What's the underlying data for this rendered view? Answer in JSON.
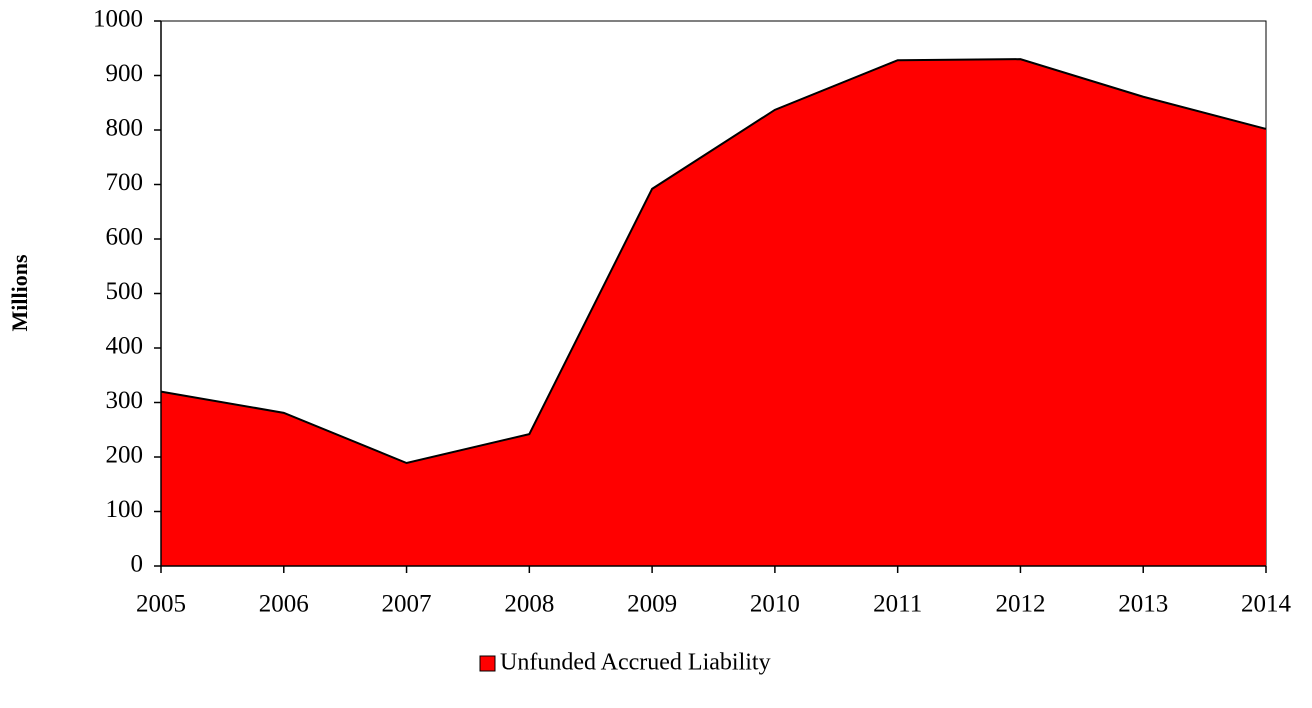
{
  "chart_data": {
    "type": "area",
    "y_label": "Millions",
    "x": [
      2005,
      2006,
      2007,
      2008,
      2009,
      2010,
      2011,
      2012,
      2013,
      2014
    ],
    "xlim": [
      2005,
      2014
    ],
    "xticks": [
      2005,
      2006,
      2007,
      2008,
      2009,
      2010,
      2011,
      2012,
      2013,
      2014
    ],
    "ylim": [
      0,
      1000
    ],
    "yticks": [
      0,
      100,
      200,
      300,
      400,
      500,
      600,
      700,
      800,
      900,
      1000
    ],
    "series": [
      {
        "name": "Unfunded Accrued Liability",
        "color": "#ff0000",
        "values": [
          320,
          281,
          189,
          242,
          692,
          837,
          928,
          930,
          861,
          802
        ]
      }
    ],
    "legend": "bottom"
  }
}
